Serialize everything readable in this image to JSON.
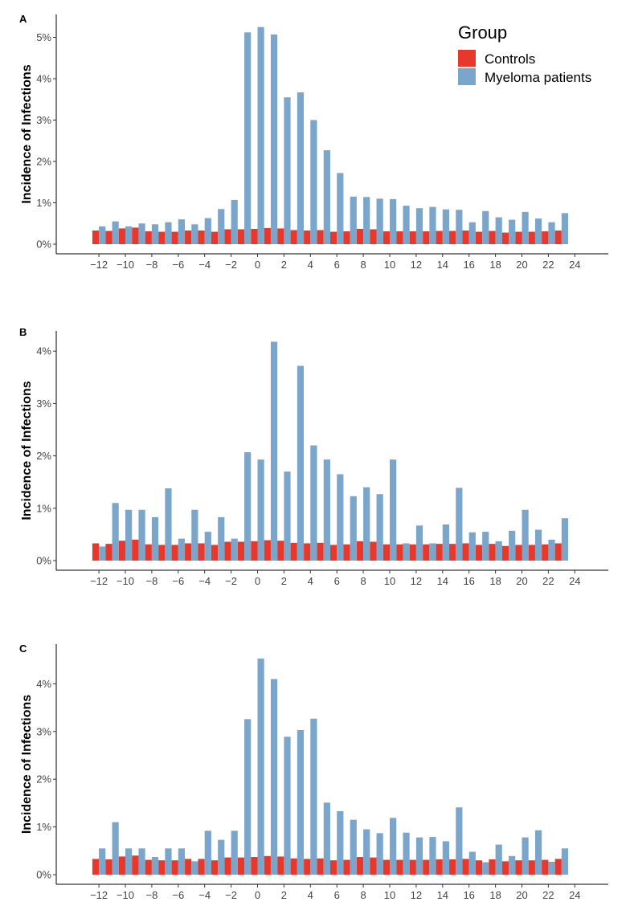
{
  "legend": {
    "title": "Group",
    "items": [
      {
        "label": "Controls",
        "color": "#e8382c"
      },
      {
        "label": "Myeloma patients",
        "color": "#7aa6cb"
      }
    ]
  },
  "chart_data": [
    {
      "panel": "A",
      "type": "bar",
      "ylabel": "Incidence of Infections",
      "xlabel": "",
      "x": [
        -12,
        -11,
        -10,
        -9,
        -8,
        -7,
        -6,
        -5,
        -4,
        -3,
        -2,
        -1,
        0,
        1,
        2,
        3,
        4,
        5,
        6,
        7,
        8,
        9,
        10,
        11,
        12,
        13,
        14,
        15,
        16,
        17,
        18,
        19,
        20,
        21,
        22,
        23
      ],
      "xticks": [
        -12,
        -10,
        -8,
        -6,
        -4,
        -2,
        0,
        2,
        4,
        6,
        8,
        10,
        12,
        14,
        16,
        18,
        20,
        22,
        24
      ],
      "yticks": [
        "0%",
        "1%",
        "2%",
        "3%",
        "4%",
        "5%"
      ],
      "ylim": [
        0,
        5.5
      ],
      "series": [
        {
          "name": "Controls",
          "color": "#e8382c",
          "values": [
            0.33,
            0.32,
            0.38,
            0.4,
            0.31,
            0.3,
            0.3,
            0.33,
            0.33,
            0.3,
            0.36,
            0.36,
            0.37,
            0.39,
            0.38,
            0.34,
            0.33,
            0.34,
            0.3,
            0.31,
            0.37,
            0.36,
            0.31,
            0.31,
            0.31,
            0.31,
            0.32,
            0.32,
            0.33,
            0.3,
            0.32,
            0.28,
            0.3,
            0.3,
            0.31,
            0.33
          ]
        },
        {
          "name": "Myeloma patients",
          "color": "#7aa6cb",
          "values": [
            0.43,
            0.55,
            0.43,
            0.5,
            0.48,
            0.53,
            0.6,
            0.48,
            0.63,
            0.85,
            1.07,
            5.12,
            5.25,
            5.07,
            3.55,
            3.67,
            3.0,
            2.27,
            1.72,
            1.15,
            1.14,
            1.1,
            1.09,
            0.93,
            0.87,
            0.9,
            0.84,
            0.83,
            0.53,
            0.8,
            0.65,
            0.59,
            0.78,
            0.62,
            0.53,
            0.75
          ]
        }
      ]
    },
    {
      "panel": "B",
      "type": "bar",
      "ylabel": "Incidence of Infections",
      "xlabel": "",
      "x": [
        -12,
        -11,
        -10,
        -9,
        -8,
        -7,
        -6,
        -5,
        -4,
        -3,
        -2,
        -1,
        0,
        1,
        2,
        3,
        4,
        5,
        6,
        7,
        8,
        9,
        10,
        11,
        12,
        13,
        14,
        15,
        16,
        17,
        18,
        19,
        20,
        21,
        22,
        23
      ],
      "xticks": [
        -12,
        -10,
        -8,
        -6,
        -4,
        -2,
        0,
        2,
        4,
        6,
        8,
        10,
        12,
        14,
        16,
        18,
        20,
        22,
        24
      ],
      "yticks": [
        "0%",
        "1%",
        "2%",
        "3%",
        "4%"
      ],
      "ylim": [
        0,
        4.4
      ],
      "series": [
        {
          "name": "Controls",
          "color": "#e8382c",
          "values": [
            0.33,
            0.32,
            0.38,
            0.4,
            0.31,
            0.3,
            0.3,
            0.33,
            0.33,
            0.3,
            0.36,
            0.36,
            0.37,
            0.39,
            0.38,
            0.34,
            0.33,
            0.34,
            0.3,
            0.31,
            0.37,
            0.36,
            0.31,
            0.31,
            0.31,
            0.31,
            0.32,
            0.32,
            0.33,
            0.3,
            0.32,
            0.28,
            0.3,
            0.3,
            0.31,
            0.33
          ]
        },
        {
          "name": "Myeloma patients",
          "color": "#7aa6cb",
          "values": [
            0.27,
            1.1,
            0.97,
            0.97,
            0.83,
            1.38,
            0.42,
            0.97,
            0.55,
            0.83,
            0.42,
            2.07,
            1.93,
            4.18,
            1.7,
            3.72,
            2.2,
            1.93,
            1.65,
            1.23,
            1.4,
            1.27,
            1.93,
            0.33,
            0.67,
            0.33,
            0.69,
            1.39,
            0.54,
            0.55,
            0.37,
            0.57,
            0.97,
            0.59,
            0.4,
            0.81
          ]
        }
      ]
    },
    {
      "panel": "C",
      "type": "bar",
      "ylabel": "Incidence of Infections",
      "xlabel": "",
      "x": [
        -12,
        -11,
        -10,
        -9,
        -8,
        -7,
        -6,
        -5,
        -4,
        -3,
        -2,
        -1,
        0,
        1,
        2,
        3,
        4,
        5,
        6,
        7,
        8,
        9,
        10,
        11,
        12,
        13,
        14,
        15,
        16,
        17,
        18,
        19,
        20,
        21,
        22,
        23
      ],
      "xticks": [
        -12,
        -10,
        -8,
        -6,
        -4,
        -2,
        0,
        2,
        4,
        6,
        8,
        10,
        12,
        14,
        16,
        18,
        20,
        22,
        24
      ],
      "yticks": [
        "0%",
        "1%",
        "2%",
        "3%",
        "4%"
      ],
      "ylim": [
        0,
        4.9
      ],
      "series": [
        {
          "name": "Controls",
          "color": "#e8382c",
          "values": [
            0.33,
            0.32,
            0.38,
            0.4,
            0.31,
            0.3,
            0.3,
            0.33,
            0.33,
            0.3,
            0.36,
            0.36,
            0.37,
            0.39,
            0.38,
            0.34,
            0.33,
            0.34,
            0.3,
            0.31,
            0.37,
            0.36,
            0.31,
            0.31,
            0.31,
            0.31,
            0.32,
            0.32,
            0.33,
            0.3,
            0.32,
            0.28,
            0.3,
            0.3,
            0.31,
            0.33
          ]
        },
        {
          "name": "Myeloma patients",
          "color": "#7aa6cb",
          "values": [
            0.55,
            1.1,
            0.55,
            0.55,
            0.37,
            0.55,
            0.55,
            0.28,
            0.92,
            0.73,
            0.92,
            3.26,
            4.53,
            4.1,
            2.89,
            3.03,
            3.27,
            1.51,
            1.33,
            1.15,
            0.95,
            0.87,
            1.19,
            0.88,
            0.78,
            0.79,
            0.7,
            1.41,
            0.48,
            0.26,
            0.63,
            0.39,
            0.78,
            0.93,
            0.27,
            0.55
          ]
        }
      ]
    }
  ]
}
